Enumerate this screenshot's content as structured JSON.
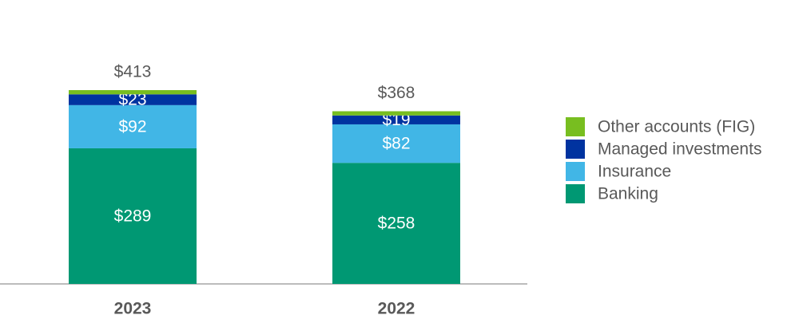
{
  "chart_data": {
    "type": "stacked_bar",
    "categories": [
      "2023",
      "2022"
    ],
    "series": [
      {
        "name": "Banking",
        "color": "#009873",
        "values": [
          289,
          258
        ],
        "value_labels": [
          "$289",
          "$258"
        ]
      },
      {
        "name": "Insurance",
        "color": "#41b6e6",
        "values": [
          92,
          82
        ],
        "value_labels": [
          "$92",
          "$82"
        ]
      },
      {
        "name": "Managed investments",
        "color": "#0033a0",
        "values": [
          23,
          19
        ],
        "value_labels": [
          "$23",
          "$19"
        ]
      },
      {
        "name": "Other accounts (FIG)",
        "color": "#78be20",
        "values": [
          9,
          9
        ]
      }
    ],
    "totals": [
      413,
      368
    ],
    "total_labels": [
      "$413",
      "$368"
    ],
    "legend": "right"
  }
}
